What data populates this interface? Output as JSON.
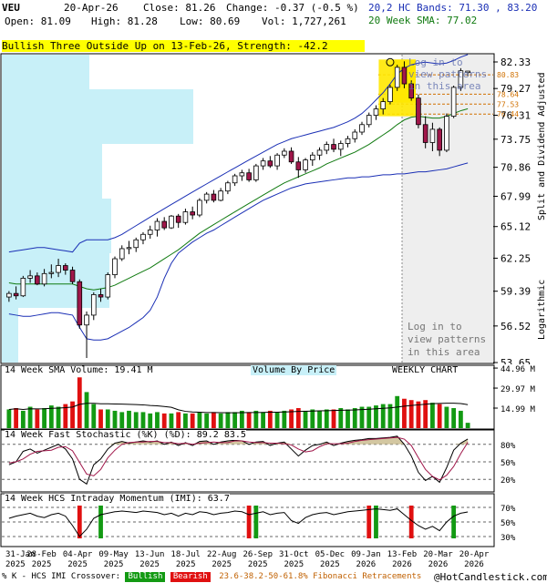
{
  "header": {
    "symbol": "VEU",
    "date": "20-Apr-26",
    "close": "Close: 81.26",
    "change": "Change: -0.37 (-0.5 %)",
    "open": "Open: 81.09",
    "high": "High: 81.28",
    "low": "Low: 80.69",
    "vol": "Vol: 1,727,261",
    "bands": "20,2 HC Bands: 71.30 , 83.20",
    "sma": "20 Week SMA: 77.02"
  },
  "pattern_banner": "Bullish Three Outside Up on 13-Feb-26, Strength: -42.2",
  "login_text": [
    "Log in to",
    "view patterns",
    "in this area"
  ],
  "right_axis_label": "Split and Dividend Adjusted",
  "log_label": "Logarithmic",
  "price_ticks": [
    "82.33",
    "79.27",
    "76.31",
    "73.75",
    "70.86",
    "67.99",
    "65.12",
    "62.25",
    "59.39",
    "56.52",
    "53.65"
  ],
  "fib_labels": [
    "80.83",
    "78.64",
    "77.53",
    "76.44"
  ],
  "volume_panel": {
    "title": "14 Week SMA Volume: 19.41 M",
    "vbp": "Volume By Price",
    "chart_type": "WEEKLY CHART",
    "ticks": [
      "44.96 M",
      "29.97 M",
      "14.99 M"
    ]
  },
  "stoch_panel": {
    "title": "14 Week Fast Stochastic (%K) (%D): 89.2 83.5",
    "ticks": [
      "80%",
      "50%",
      "20%"
    ]
  },
  "imi_panel": {
    "title": "14 Week HCS Intraday Momentum (IMI): 63.7",
    "ticks": [
      "70%",
      "50%",
      "30%"
    ]
  },
  "x_axis": {
    "labels": [
      "31-Jan\n2025",
      "28-Feb\n2025",
      "04-Apr\n2025",
      "09-May\n2025",
      "13-Jun\n2025",
      "18-Jul\n2025",
      "22-Aug\n2025",
      "26-Sep\n2025",
      "31-Oct\n2025",
      "05-Dec\n2025",
      "09-Jan\n2026",
      "13-Feb\n2026",
      "20-Mar\n2026",
      "20-Apr\n2026"
    ]
  },
  "footer": {
    "prefix": "% K - HCS IMI Crossover:",
    "bullish": "Bullish",
    "bearish": "Bearish",
    "fib": "23.6-38.2-50-61.8% Fibonacci Retracements",
    "brand": "@HotCandlestick.com"
  },
  "colors": {
    "up": "#139a13",
    "down": "#a0174a",
    "sma": "#107a10",
    "band": "#1a2fb5",
    "vbp": "#c8f0f8"
  },
  "chart_data": {
    "type": "candlestick",
    "title": "VEU",
    "ylabel": "Split and Dividend Adjusted",
    "yscale": "log",
    "ylim": [
      53.65,
      82.33
    ],
    "x": [
      "2025-01-24",
      "2025-01-31",
      "2025-02-07",
      "2025-02-14",
      "2025-02-21",
      "2025-02-28",
      "2025-03-07",
      "2025-03-14",
      "2025-03-21",
      "2025-03-28",
      "2025-04-04",
      "2025-04-11",
      "2025-04-18",
      "2025-04-25",
      "2025-05-02",
      "2025-05-09",
      "2025-05-16",
      "2025-05-23",
      "2025-05-30",
      "2025-06-06",
      "2025-06-13",
      "2025-06-20",
      "2025-06-27",
      "2025-07-04",
      "2025-07-11",
      "2025-07-18",
      "2025-07-25",
      "2025-08-01",
      "2025-08-08",
      "2025-08-15",
      "2025-08-22",
      "2025-08-29",
      "2025-09-05",
      "2025-09-12",
      "2025-09-19",
      "2025-09-26",
      "2025-10-03",
      "2025-10-10",
      "2025-10-17",
      "2025-10-24",
      "2025-10-31",
      "2025-11-07",
      "2025-11-14",
      "2025-11-21",
      "2025-11-28",
      "2025-12-05",
      "2025-12-12",
      "2025-12-19",
      "2025-12-26",
      "2026-01-02",
      "2026-01-09",
      "2026-01-16",
      "2026-01-23",
      "2026-01-30",
      "2026-02-06",
      "2026-02-13",
      "2026-02-20",
      "2026-02-27",
      "2026-03-06",
      "2026-03-13",
      "2026-03-20",
      "2026-03-27",
      "2026-04-03",
      "2026-04-10",
      "2026-04-17",
      "2026-04-20"
    ],
    "ohlc": [
      [
        58.9,
        59.4,
        58.5,
        59.2
      ],
      [
        59.2,
        59.8,
        58.7,
        59.0
      ],
      [
        59.0,
        60.7,
        58.9,
        60.5
      ],
      [
        60.5,
        61.2,
        60.1,
        60.7
      ],
      [
        60.7,
        61.0,
        59.9,
        60.0
      ],
      [
        60.0,
        61.3,
        59.8,
        60.9
      ],
      [
        60.9,
        61.7,
        60.5,
        61.0
      ],
      [
        61.0,
        62.2,
        60.6,
        61.6
      ],
      [
        61.6,
        61.8,
        60.8,
        61.2
      ],
      [
        61.2,
        61.5,
        60.0,
        60.2
      ],
      [
        60.2,
        60.4,
        56.3,
        56.6
      ],
      [
        56.6,
        57.7,
        54.0,
        57.4
      ],
      [
        57.4,
        59.3,
        57.0,
        59.1
      ],
      [
        59.1,
        59.6,
        58.5,
        58.9
      ],
      [
        58.9,
        61.0,
        58.7,
        60.8
      ],
      [
        60.8,
        62.4,
        60.5,
        62.2
      ],
      [
        62.2,
        63.4,
        62.0,
        63.1
      ],
      [
        63.1,
        63.8,
        62.6,
        63.2
      ],
      [
        63.2,
        64.1,
        62.8,
        63.9
      ],
      [
        63.9,
        64.6,
        63.5,
        64.4
      ],
      [
        64.4,
        65.2,
        64.0,
        64.8
      ],
      [
        64.8,
        65.9,
        64.2,
        65.6
      ],
      [
        65.6,
        66.0,
        64.8,
        65.0
      ],
      [
        65.0,
        66.2,
        64.9,
        66.1
      ],
      [
        66.1,
        66.3,
        65.0,
        65.5
      ],
      [
        65.5,
        66.8,
        65.3,
        66.5
      ],
      [
        66.5,
        67.0,
        65.8,
        66.2
      ],
      [
        66.2,
        67.8,
        66.0,
        67.6
      ],
      [
        67.6,
        68.4,
        67.3,
        68.2
      ],
      [
        68.2,
        68.6,
        67.4,
        67.6
      ],
      [
        67.6,
        68.8,
        67.5,
        68.5
      ],
      [
        68.5,
        69.5,
        68.2,
        69.3
      ],
      [
        69.3,
        70.2,
        69.0,
        70.0
      ],
      [
        70.0,
        70.6,
        69.5,
        70.3
      ],
      [
        70.3,
        70.7,
        69.4,
        69.6
      ],
      [
        69.6,
        71.2,
        69.4,
        71.0
      ],
      [
        71.0,
        71.8,
        70.6,
        71.5
      ],
      [
        71.5,
        72.0,
        70.8,
        71.0
      ],
      [
        71.0,
        72.3,
        70.6,
        72.1
      ],
      [
        72.1,
        72.8,
        71.8,
        72.5
      ],
      [
        72.5,
        72.9,
        71.2,
        71.4
      ],
      [
        71.4,
        71.9,
        69.8,
        70.6
      ],
      [
        70.6,
        71.8,
        70.3,
        71.6
      ],
      [
        71.6,
        72.4,
        71.0,
        72.1
      ],
      [
        72.1,
        72.9,
        71.6,
        72.6
      ],
      [
        72.6,
        73.5,
        72.2,
        73.2
      ],
      [
        73.2,
        73.8,
        72.4,
        72.7
      ],
      [
        72.7,
        73.6,
        72.0,
        73.3
      ],
      [
        73.3,
        74.1,
        72.9,
        73.8
      ],
      [
        73.8,
        74.8,
        73.4,
        74.5
      ],
      [
        74.5,
        75.6,
        74.2,
        75.3
      ],
      [
        75.3,
        76.6,
        75.0,
        76.3
      ],
      [
        76.3,
        77.4,
        75.8,
        77.0
      ],
      [
        77.0,
        78.2,
        76.4,
        77.8
      ],
      [
        77.8,
        79.7,
        77.5,
        79.4
      ],
      [
        79.4,
        82.0,
        79.0,
        81.7
      ],
      [
        81.7,
        82.4,
        79.3,
        79.8
      ],
      [
        79.8,
        80.2,
        77.9,
        78.2
      ],
      [
        78.2,
        78.6,
        74.9,
        75.3
      ],
      [
        75.3,
        76.2,
        72.8,
        73.4
      ],
      [
        73.4,
        75.5,
        72.5,
        74.8
      ],
      [
        74.8,
        75.0,
        72.0,
        72.6
      ],
      [
        72.6,
        76.5,
        72.4,
        76.2
      ],
      [
        76.2,
        79.6,
        76.0,
        79.4
      ],
      [
        79.4,
        81.6,
        79.0,
        81.3
      ],
      [
        81.09,
        81.28,
        80.69,
        81.26
      ]
    ],
    "sma20": [
      60.1,
      60.0,
      60.0,
      60.0,
      60.0,
      60.0,
      60.0,
      60.0,
      60.0,
      60.0,
      59.8,
      59.6,
      59.5,
      59.6,
      59.7,
      59.9,
      60.2,
      60.5,
      60.8,
      61.1,
      61.4,
      61.8,
      62.2,
      62.6,
      63.0,
      63.5,
      64.0,
      64.5,
      64.9,
      65.3,
      65.7,
      66.1,
      66.5,
      66.9,
      67.3,
      67.7,
      68.1,
      68.5,
      68.9,
      69.3,
      69.6,
      69.9,
      70.2,
      70.5,
      70.8,
      71.2,
      71.5,
      71.8,
      72.1,
      72.4,
      72.8,
      73.2,
      73.7,
      74.2,
      74.7,
      75.3,
      75.8,
      76.1,
      76.2,
      76.1,
      76.0,
      76.0,
      76.2,
      76.5,
      76.8,
      77.02
    ],
    "upper_band": [
      62.8,
      62.9,
      63.0,
      63.1,
      63.2,
      63.2,
      63.1,
      63.0,
      62.9,
      62.8,
      63.6,
      63.9,
      63.9,
      63.9,
      63.9,
      64.1,
      64.4,
      64.8,
      65.2,
      65.6,
      66.0,
      66.4,
      66.8,
      67.2,
      67.6,
      68.0,
      68.4,
      68.8,
      69.2,
      69.6,
      70.0,
      70.4,
      70.8,
      71.2,
      71.6,
      72.0,
      72.4,
      72.8,
      73.2,
      73.5,
      73.8,
      74.0,
      74.2,
      74.4,
      74.6,
      74.8,
      75.0,
      75.3,
      75.6,
      76.0,
      76.5,
      77.2,
      78.0,
      78.8,
      79.8,
      80.9,
      81.6,
      82.0,
      82.2,
      82.3,
      82.2,
      82.1,
      82.2,
      82.5,
      82.9,
      83.2
    ],
    "lower_band": [
      57.5,
      57.4,
      57.3,
      57.3,
      57.4,
      57.5,
      57.6,
      57.6,
      57.5,
      57.4,
      56.4,
      55.5,
      55.4,
      55.4,
      55.5,
      55.8,
      56.1,
      56.4,
      56.8,
      57.2,
      57.8,
      58.9,
      60.5,
      61.8,
      62.7,
      63.2,
      63.7,
      64.1,
      64.5,
      64.8,
      65.2,
      65.6,
      66.0,
      66.4,
      66.8,
      67.2,
      67.6,
      67.9,
      68.2,
      68.5,
      68.8,
      69.0,
      69.2,
      69.3,
      69.4,
      69.5,
      69.6,
      69.7,
      69.8,
      69.8,
      69.9,
      69.9,
      70.0,
      70.1,
      70.1,
      70.2,
      70.2,
      70.3,
      70.4,
      70.4,
      70.5,
      70.6,
      70.7,
      70.9,
      71.1,
      71.3
    ],
    "fibonacci": [
      80.83,
      78.64,
      77.53,
      76.44
    ],
    "volume_m": [
      14,
      15,
      13,
      16,
      14,
      15,
      17,
      16,
      18,
      20,
      38,
      27,
      18,
      14,
      14,
      13,
      12,
      13,
      12,
      12,
      11,
      12,
      11,
      11,
      12,
      11,
      11,
      12,
      11,
      12,
      11,
      12,
      12,
      13,
      12,
      13,
      12,
      13,
      12,
      13,
      14,
      15,
      13,
      14,
      13,
      14,
      14,
      15,
      14,
      15,
      16,
      16,
      17,
      18,
      18,
      24,
      22,
      21,
      20,
      21,
      19,
      18,
      16,
      15,
      13,
      4
    ],
    "volume_sma_m": 19.41,
    "stoch_k": [
      45,
      50,
      68,
      72,
      65,
      70,
      75,
      80,
      72,
      55,
      20,
      12,
      45,
      55,
      72,
      82,
      85,
      82,
      84,
      86,
      84,
      86,
      80,
      84,
      78,
      83,
      78,
      85,
      86,
      80,
      84,
      86,
      87,
      86,
      80,
      84,
      85,
      78,
      82,
      84,
      72,
      60,
      70,
      78,
      80,
      84,
      78,
      82,
      85,
      87,
      88,
      90,
      90,
      91,
      92,
      94,
      80,
      60,
      32,
      18,
      25,
      15,
      40,
      70,
      82,
      89.2
    ],
    "stoch_d": [
      48,
      50,
      55,
      63,
      68,
      69,
      70,
      75,
      76,
      69,
      49,
      29,
      26,
      37,
      57,
      70,
      80,
      83,
      84,
      84,
      85,
      85,
      83,
      83,
      81,
      82,
      80,
      82,
      83,
      84,
      83,
      83,
      86,
      86,
      84,
      83,
      83,
      82,
      82,
      81,
      79,
      72,
      67,
      69,
      76,
      81,
      81,
      81,
      82,
      85,
      87,
      88,
      89,
      90,
      91,
      92,
      89,
      78,
      57,
      37,
      25,
      19,
      27,
      42,
      64,
      83.5
    ],
    "imi": [
      55,
      58,
      60,
      62,
      58,
      56,
      60,
      62,
      58,
      45,
      30,
      40,
      55,
      60,
      62,
      64,
      65,
      64,
      63,
      65,
      64,
      63,
      60,
      62,
      58,
      62,
      60,
      64,
      63,
      60,
      62,
      63,
      65,
      64,
      60,
      62,
      64,
      60,
      62,
      63,
      52,
      48,
      56,
      60,
      62,
      63,
      60,
      62,
      64,
      65,
      66,
      67,
      68,
      67,
      66,
      68,
      60,
      52,
      45,
      40,
      44,
      38,
      50,
      58,
      62,
      63.7
    ]
  }
}
